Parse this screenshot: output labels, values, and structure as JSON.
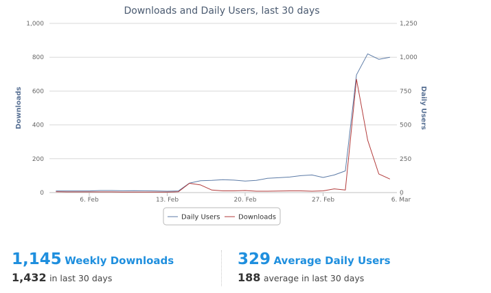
{
  "chart_data": {
    "type": "line",
    "title": "Downloads and Daily Users, last 30 days",
    "x_ticks": [
      "6. Feb",
      "13. Feb",
      "20. Feb",
      "27. Feb",
      "6. Mar"
    ],
    "x": [
      "2023-02-03",
      "2023-02-04",
      "2023-02-05",
      "2023-02-06",
      "2023-02-07",
      "2023-02-08",
      "2023-02-09",
      "2023-02-10",
      "2023-02-11",
      "2023-02-12",
      "2023-02-13",
      "2023-02-14",
      "2023-02-15",
      "2023-02-16",
      "2023-02-17",
      "2023-02-18",
      "2023-02-19",
      "2023-02-20",
      "2023-02-21",
      "2023-02-22",
      "2023-02-23",
      "2023-02-24",
      "2023-02-25",
      "2023-02-26",
      "2023-02-27",
      "2023-02-28",
      "2023-03-01",
      "2023-03-02",
      "2023-03-03",
      "2023-03-04",
      "2023-03-05"
    ],
    "y_left": {
      "label": "Downloads",
      "ticks": [
        "0",
        "200",
        "400",
        "600",
        "800",
        "1,000"
      ],
      "range": [
        0,
        1000
      ]
    },
    "y_right": {
      "label": "Daily Users",
      "ticks": [
        "0",
        "250",
        "500",
        "750",
        "1,000",
        "1,250"
      ],
      "range": [
        0,
        1250
      ]
    },
    "grid": true,
    "legend": "bottom-center",
    "series": [
      {
        "name": "Daily Users",
        "axis": "right",
        "color": "#5b7aa6",
        "values": [
          12,
          12,
          12,
          12,
          15,
          15,
          13,
          14,
          13,
          12,
          10,
          12,
          70,
          88,
          90,
          95,
          92,
          85,
          90,
          105,
          110,
          115,
          125,
          130,
          112,
          130,
          160,
          870,
          1025,
          985,
          1000
        ]
      },
      {
        "name": "Downloads",
        "axis": "left",
        "color": "#b23a3a",
        "values": [
          5,
          4,
          4,
          4,
          4,
          4,
          3,
          3,
          3,
          3,
          3,
          5,
          55,
          45,
          15,
          10,
          10,
          12,
          8,
          8,
          9,
          10,
          10,
          8,
          10,
          22,
          15,
          670,
          310,
          110,
          80
        ]
      }
    ]
  },
  "stats": {
    "weekly": {
      "value": "1,145",
      "label": "Weekly Downloads",
      "sub_value": "1,432",
      "sub_label": "in last 30 days"
    },
    "daily": {
      "value": "329",
      "label": "Average Daily Users",
      "sub_value": "188",
      "sub_label": "average in last 30 days"
    }
  }
}
